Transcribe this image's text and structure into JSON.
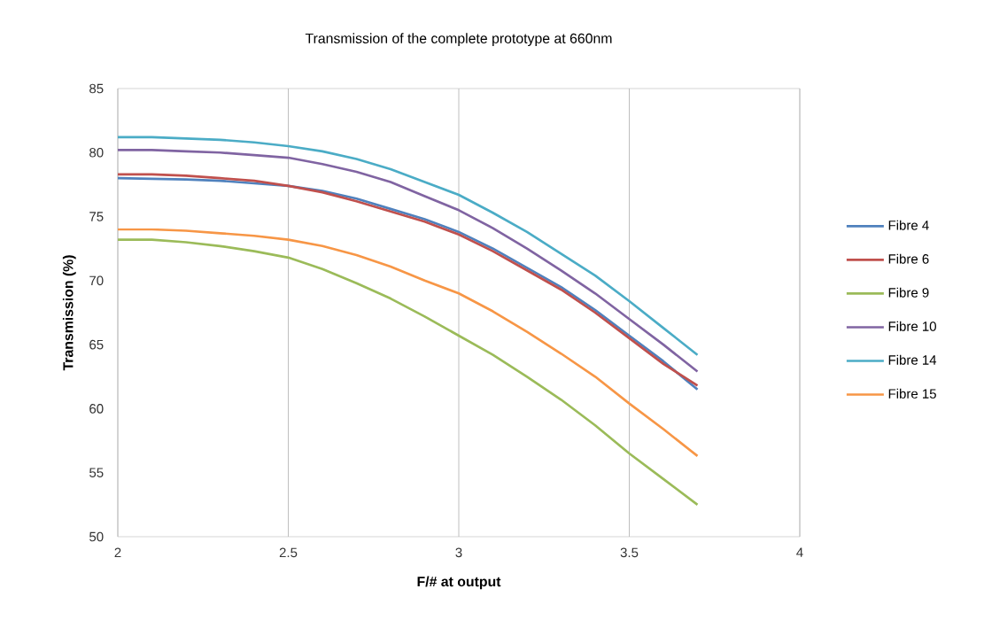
{
  "chart_data": {
    "type": "line",
    "title": "Transmission of the complete prototype at 660nm",
    "xlabel": "F/# at output",
    "ylabel": "Transmission (%)",
    "x": [
      2,
      2.1,
      2.2,
      2.3,
      2.4,
      2.5,
      2.6,
      2.7,
      2.8,
      2.9,
      3,
      3.1,
      3.2,
      3.3,
      3.4,
      3.5,
      3.6,
      3.7
    ],
    "series": [
      {
        "name": "Fibre 4",
        "color": "#4f81bd",
        "values": [
          78.0,
          77.95,
          77.9,
          77.8,
          77.6,
          77.4,
          77.0,
          76.4,
          75.6,
          74.8,
          73.8,
          72.5,
          71.0,
          69.5,
          67.7,
          65.7,
          63.7,
          61.5
        ]
      },
      {
        "name": "Fibre 6",
        "color": "#c0504d",
        "values": [
          78.3,
          78.3,
          78.2,
          78.0,
          77.8,
          77.4,
          76.9,
          76.2,
          75.4,
          74.6,
          73.6,
          72.3,
          70.8,
          69.3,
          67.5,
          65.5,
          63.5,
          61.8
        ]
      },
      {
        "name": "Fibre 9",
        "color": "#9bbb59",
        "values": [
          73.2,
          73.2,
          73.0,
          72.7,
          72.3,
          71.8,
          70.9,
          69.8,
          68.6,
          67.2,
          65.7,
          64.2,
          62.5,
          60.7,
          58.7,
          56.5,
          54.5,
          52.5
        ]
      },
      {
        "name": "Fibre 10",
        "color": "#8064a2",
        "values": [
          80.2,
          80.2,
          80.1,
          80.0,
          79.8,
          79.6,
          79.1,
          78.5,
          77.7,
          76.6,
          75.5,
          74.1,
          72.5,
          70.8,
          69.0,
          67.0,
          65.0,
          62.9
        ]
      },
      {
        "name": "Fibre 14",
        "color": "#4bacc6",
        "values": [
          81.2,
          81.2,
          81.1,
          81.0,
          80.8,
          80.5,
          80.1,
          79.5,
          78.7,
          77.7,
          76.7,
          75.3,
          73.8,
          72.1,
          70.4,
          68.4,
          66.3,
          64.2
        ]
      },
      {
        "name": "Fibre 15",
        "color": "#f79646",
        "values": [
          74.0,
          74.0,
          73.9,
          73.7,
          73.5,
          73.2,
          72.7,
          72.0,
          71.1,
          70.0,
          69.0,
          67.6,
          66.0,
          64.3,
          62.5,
          60.4,
          58.4,
          56.3
        ]
      }
    ],
    "xlim": [
      2,
      4
    ],
    "ylim": [
      50,
      85
    ],
    "xticks": [
      2,
      2.5,
      3,
      3.5,
      4
    ],
    "yticks": [
      50,
      55,
      60,
      65,
      70,
      75,
      80,
      85
    ],
    "grid": "x",
    "legend": "right"
  }
}
